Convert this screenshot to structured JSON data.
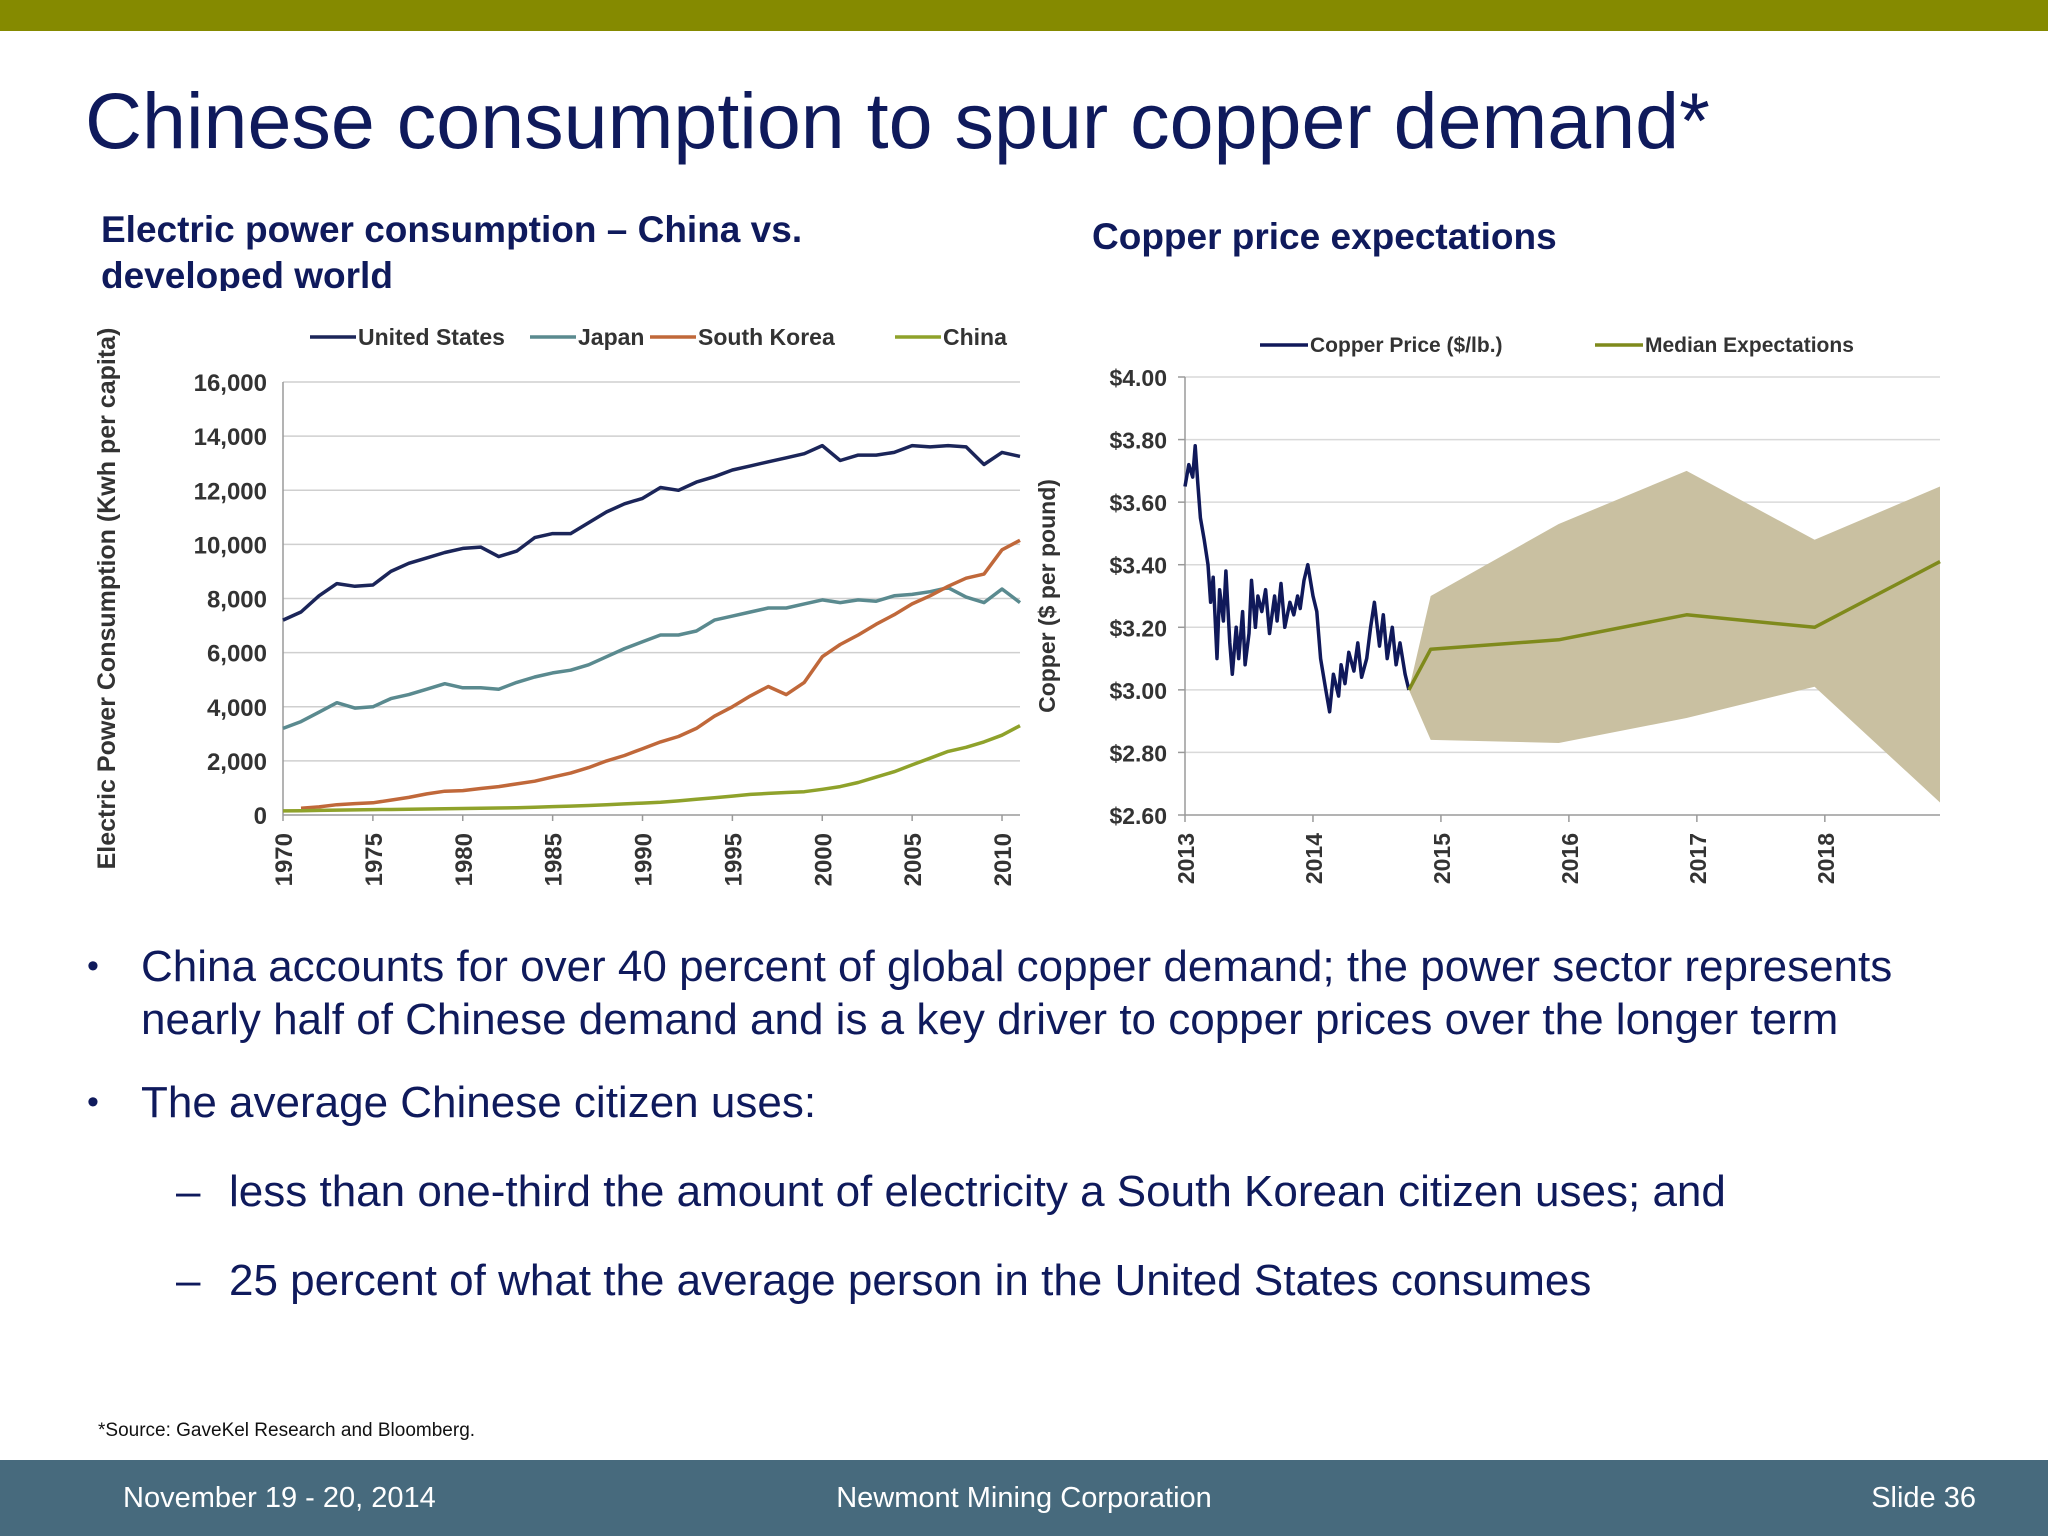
{
  "slide": {
    "title": "Chinese consumption to spur copper demand*",
    "source": "*Source: GaveKel Research and Bloomberg."
  },
  "colors": {
    "top_bar": "#858a00",
    "footer": "#476a7d",
    "title_text": "#0f1a5c",
    "united_states": "#1b2559",
    "japan": "#5a8a8f",
    "south_korea": "#c0683a",
    "china": "#8fa22b",
    "copper_price": "#10195a",
    "median": "#7f8a1c",
    "band": "#c9c0a1"
  },
  "bullets": [
    {
      "text": "China accounts for over 40 percent of global copper demand; the power sector represents nearly half of Chinese demand and is a key driver to copper prices over the longer term"
    },
    {
      "text": "The average Chinese citizen uses:"
    }
  ],
  "sub_bullets": [
    {
      "text": "less than one-third the amount of electricity a South Korean citizen uses; and"
    },
    {
      "text": "25 percent of what the average person in the United States consumes"
    }
  ],
  "footer": {
    "date": "November 19 - 20, 2014",
    "company": "Newmont Mining Corporation",
    "slide": "Slide 36"
  },
  "chart_data": [
    {
      "type": "line",
      "title": "Electric power consumption – China vs. developed world",
      "xlabel": "",
      "ylabel": "Electric Power Consumption (Kwh per capita)",
      "xlim": [
        1970,
        2011
      ],
      "ylim": [
        0,
        16000
      ],
      "xticks": [
        "1970",
        "1975",
        "1980",
        "1985",
        "1990",
        "1995",
        "2000",
        "2005",
        "2010"
      ],
      "yticks": [
        "0",
        "2,000",
        "4,000",
        "6,000",
        "8,000",
        "10,000",
        "12,000",
        "14,000",
        "16,000"
      ],
      "grid": "horizontal",
      "legend": "top",
      "x": [
        1970,
        1971,
        1972,
        1973,
        1974,
        1975,
        1976,
        1977,
        1978,
        1979,
        1980,
        1981,
        1982,
        1983,
        1984,
        1985,
        1986,
        1987,
        1988,
        1989,
        1990,
        1991,
        1992,
        1993,
        1994,
        1995,
        1996,
        1997,
        1998,
        1999,
        2000,
        2001,
        2002,
        2003,
        2004,
        2005,
        2006,
        2007,
        2008,
        2009,
        2010,
        2011
      ],
      "series": [
        {
          "name": "United States",
          "values": [
            7200,
            7500,
            8100,
            8550,
            8450,
            8500,
            9000,
            9300,
            9500,
            9700,
            9850,
            9900,
            9550,
            9750,
            10250,
            10400,
            10400,
            10800,
            11200,
            11500,
            11700,
            12100,
            12000,
            12300,
            12500,
            12750,
            12900,
            13050,
            13200,
            13350,
            13650,
            13100,
            13300,
            13300,
            13400,
            13650,
            13600,
            13650,
            13600,
            12950,
            13400,
            13250
          ]
        },
        {
          "name": "Japan",
          "values": [
            3200,
            3450,
            3800,
            4150,
            3950,
            4000,
            4300,
            4450,
            4650,
            4850,
            4700,
            4700,
            4650,
            4900,
            5100,
            5250,
            5350,
            5550,
            5850,
            6150,
            6400,
            6650,
            6650,
            6800,
            7200,
            7350,
            7500,
            7650,
            7650,
            7800,
            7950,
            7850,
            7950,
            7900,
            8100,
            8150,
            8250,
            8400,
            8050,
            7850,
            8350,
            7850
          ]
        },
        {
          "name": "South Korea",
          "values": [
            null,
            250,
            300,
            380,
            420,
            450,
            550,
            650,
            780,
            880,
            900,
            980,
            1050,
            1150,
            1250,
            1400,
            1550,
            1750,
            2000,
            2200,
            2450,
            2700,
            2900,
            3200,
            3650,
            4000,
            4400,
            4750,
            4450,
            4900,
            5850,
            6300,
            6650,
            7050,
            7400,
            7800,
            8100,
            8450,
            8750,
            8900,
            9800,
            10150
          ]
        },
        {
          "name": "China",
          "values": [
            150,
            160,
            170,
            180,
            190,
            200,
            205,
            210,
            220,
            230,
            240,
            250,
            260,
            270,
            290,
            310,
            330,
            350,
            380,
            410,
            440,
            470,
            520,
            580,
            640,
            700,
            760,
            800,
            830,
            860,
            950,
            1050,
            1200,
            1400,
            1600,
            1850,
            2100,
            2350,
            2500,
            2700,
            2950,
            3300
          ]
        }
      ]
    },
    {
      "type": "line",
      "title": "Copper price expectations",
      "xlabel": "",
      "ylabel": "Copper ($ per pound)",
      "xlim": [
        2013,
        2018.9
      ],
      "ylim": [
        2.6,
        4.0
      ],
      "xticks": [
        "2013",
        "2014",
        "2015",
        "2016",
        "2017",
        "2018"
      ],
      "yticks": [
        "$2.60",
        "$2.80",
        "$3.00",
        "$3.20",
        "$3.40",
        "$3.60",
        "$3.80",
        "$4.00"
      ],
      "grid": "horizontal",
      "legend": "top",
      "series": [
        {
          "name": "Copper Price ($/lb.)",
          "x": [
            2013.0,
            2013.03,
            2013.06,
            2013.08,
            2013.1,
            2013.12,
            2013.15,
            2013.18,
            2013.2,
            2013.22,
            2013.25,
            2013.27,
            2013.3,
            2013.32,
            2013.35,
            2013.37,
            2013.4,
            2013.42,
            2013.45,
            2013.47,
            2013.5,
            2013.52,
            2013.55,
            2013.57,
            2013.6,
            2013.63,
            2013.66,
            2013.7,
            2013.72,
            2013.75,
            2013.78,
            2013.82,
            2013.85,
            2013.88,
            2013.9,
            2013.93,
            2013.96,
            2014.0,
            2014.03,
            2014.06,
            2014.1,
            2014.13,
            2014.16,
            2014.2,
            2014.22,
            2014.25,
            2014.28,
            2014.32,
            2014.35,
            2014.38,
            2014.42,
            2014.45,
            2014.48,
            2014.52,
            2014.55,
            2014.58,
            2014.62,
            2014.65,
            2014.68,
            2014.72,
            2014.75
          ],
          "values": [
            3.65,
            3.72,
            3.68,
            3.78,
            3.66,
            3.55,
            3.48,
            3.4,
            3.28,
            3.36,
            3.1,
            3.32,
            3.22,
            3.38,
            3.15,
            3.05,
            3.2,
            3.1,
            3.25,
            3.08,
            3.18,
            3.35,
            3.2,
            3.3,
            3.25,
            3.32,
            3.18,
            3.3,
            3.22,
            3.34,
            3.2,
            3.28,
            3.24,
            3.3,
            3.26,
            3.35,
            3.4,
            3.3,
            3.25,
            3.1,
            3.0,
            2.93,
            3.05,
            2.98,
            3.08,
            3.02,
            3.12,
            3.06,
            3.15,
            3.04,
            3.1,
            3.2,
            3.28,
            3.14,
            3.24,
            3.1,
            3.2,
            3.08,
            3.15,
            3.05,
            3.0
          ]
        },
        {
          "name": "Median Expectations",
          "x": [
            2014.75,
            2014.92,
            2015.92,
            2016.92,
            2017.92,
            2018.9
          ],
          "values": [
            3.0,
            3.13,
            3.16,
            3.24,
            3.2,
            3.41
          ]
        }
      ],
      "range_band": {
        "x": [
          2014.75,
          2014.92,
          2015.92,
          2016.92,
          2017.92,
          2018.9
        ],
        "upper": [
          3.0,
          3.3,
          3.53,
          3.7,
          3.48,
          3.65
        ],
        "lower": [
          3.0,
          2.84,
          2.83,
          2.91,
          3.01,
          2.64
        ]
      }
    }
  ]
}
